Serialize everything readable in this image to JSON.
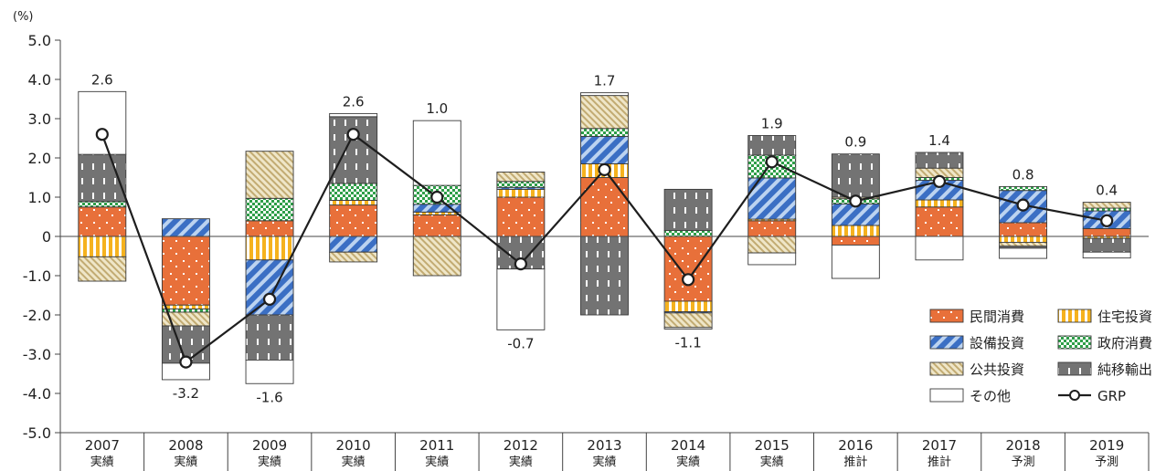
{
  "chart_data": {
    "type": "bar",
    "subtype": "stacked-bar-with-line",
    "unit_label": "(%)",
    "ylim": [
      -5.0,
      5.0
    ],
    "y_ticks": [
      "5.0",
      "4.0",
      "3.0",
      "2.0",
      "1.0",
      "0",
      "-1.0",
      "-2.0",
      "-3.0",
      "-4.0",
      "-5.0"
    ],
    "y_tick_values": [
      5,
      4,
      3,
      2,
      1,
      0,
      -1,
      -2,
      -3,
      -4,
      -5
    ],
    "grid": false,
    "legend_position": "bottom-right",
    "categories": [
      {
        "year": "2007",
        "status": "実績"
      },
      {
        "year": "2008",
        "status": "実績"
      },
      {
        "year": "2009",
        "status": "実績"
      },
      {
        "year": "2010",
        "status": "実績"
      },
      {
        "year": "2011",
        "status": "実績"
      },
      {
        "year": "2012",
        "status": "実績"
      },
      {
        "year": "2013",
        "status": "実績"
      },
      {
        "year": "2014",
        "status": "実績"
      },
      {
        "year": "2015",
        "status": "実績"
      },
      {
        "year": "2016",
        "status": "推計"
      },
      {
        "year": "2017",
        "status": "推計"
      },
      {
        "year": "2018",
        "status": "予測"
      },
      {
        "year": "2019",
        "status": "予測"
      }
    ],
    "series": [
      {
        "name": "民間消費",
        "key": "private",
        "color": "#e8703a",
        "pattern": "dots",
        "values": [
          0.75,
          -1.75,
          0.4,
          0.8,
          0.55,
          1.0,
          1.5,
          -1.65,
          0.4,
          -0.22,
          0.75,
          0.35,
          0.2
        ]
      },
      {
        "name": "住宅投資",
        "key": "housing",
        "color": "#f5b21e",
        "pattern": "vbars",
        "values": [
          -0.52,
          -0.1,
          -0.6,
          0.12,
          0.07,
          0.2,
          0.35,
          -0.27,
          0.04,
          0.28,
          0.18,
          -0.15,
          -0.05
        ]
      },
      {
        "name": "設備投資",
        "key": "capex",
        "color": "#3b6fc4",
        "pattern": "diag",
        "values": [
          0.0,
          0.45,
          -1.4,
          -0.4,
          0.2,
          0.05,
          0.7,
          -0.03,
          1.05,
          0.55,
          0.5,
          0.82,
          0.45
        ]
      },
      {
        "name": "政府消費",
        "key": "govt",
        "color": "#2e9e48",
        "pattern": "checker",
        "values": [
          0.14,
          -0.08,
          0.57,
          0.43,
          0.48,
          0.15,
          0.2,
          0.15,
          0.58,
          0.13,
          0.07,
          0.1,
          0.07
        ]
      },
      {
        "name": "公共投資",
        "key": "public",
        "color": "#cdb883",
        "pattern": "sand",
        "values": [
          -0.62,
          -0.35,
          1.2,
          -0.25,
          -1.0,
          0.24,
          0.84,
          -0.37,
          -0.42,
          0.04,
          0.24,
          -0.1,
          0.15
        ]
      },
      {
        "name": "純移輸出",
        "key": "netexport",
        "color": "#7a7a7a",
        "pattern": "dash",
        "values": [
          1.2,
          -0.95,
          -1.15,
          1.7,
          0.0,
          -0.83,
          -2.0,
          1.05,
          0.5,
          1.1,
          0.4,
          -0.05,
          -0.35
        ]
      },
      {
        "name": "その他",
        "key": "other",
        "color": "#ffffff",
        "pattern": "none",
        "values": [
          1.6,
          -0.42,
          -0.6,
          0.08,
          1.65,
          -1.55,
          0.07,
          -0.04,
          -0.3,
          -0.85,
          -0.6,
          -0.26,
          -0.15
        ]
      }
    ],
    "line": {
      "name": "GRP",
      "values": [
        2.6,
        -3.2,
        -1.6,
        2.6,
        1.0,
        -0.7,
        1.7,
        -1.1,
        1.9,
        0.9,
        1.4,
        0.8,
        0.4
      ]
    },
    "data_labels": [
      "2.6",
      "-3.2",
      "-1.6",
      "2.6",
      "1.0",
      "-0.7",
      "1.7",
      "-1.1",
      "1.9",
      "0.9",
      "1.4",
      "0.8",
      "0.4"
    ],
    "legend": [
      {
        "label": "民間消費",
        "key": "private"
      },
      {
        "label": "住宅投資",
        "key": "housing"
      },
      {
        "label": "設備投資",
        "key": "capex"
      },
      {
        "label": "政府消費",
        "key": "govt"
      },
      {
        "label": "公共投資",
        "key": "public"
      },
      {
        "label": "純移輸出",
        "key": "netexport"
      },
      {
        "label": "その他",
        "key": "other"
      },
      {
        "label": "GRP",
        "key": "line"
      }
    ]
  }
}
